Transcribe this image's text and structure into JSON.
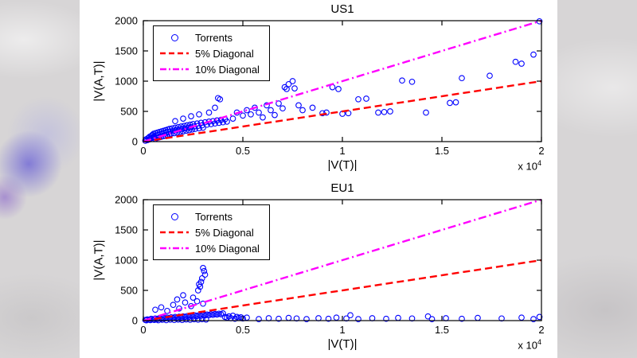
{
  "colors": {
    "marker": "#0000ff",
    "diag5": "#ff0000",
    "diag10": "#ff00ff",
    "axis": "#000000",
    "figure_bg": "#ffffff"
  },
  "legend": {
    "items": [
      {
        "label": "Torrents",
        "marker": "circle"
      },
      {
        "label": "5% Diagonal",
        "marker": "dashed-line"
      },
      {
        "label": "10% Diagonal",
        "marker": "dashdot-line"
      }
    ]
  },
  "chart_data": [
    {
      "type": "scatter",
      "title": "US1",
      "xlabel": "|V(T)|",
      "ylabel": "|V(A,T)|",
      "x_exp_base": "x 10",
      "x_exp_sup": "4",
      "xlim": [
        0,
        20000
      ],
      "ylim": [
        0,
        2000
      ],
      "x_tick_values": [
        0,
        5000,
        10000,
        15000,
        20000
      ],
      "x_tick_labels": [
        "0",
        "0.5",
        "1",
        "1.5",
        "2"
      ],
      "y_tick_values": [
        0,
        500,
        1000,
        1500,
        2000
      ],
      "y_tick_labels": [
        "0",
        "500",
        "1000",
        "1500",
        "2000"
      ],
      "legend_position": "top-left",
      "series": [
        {
          "name": "Torrents",
          "type": "scatter",
          "color_key": "marker",
          "points": [
            [
              100,
              15
            ],
            [
              150,
              40
            ],
            [
              200,
              25
            ],
            [
              250,
              60
            ],
            [
              300,
              35
            ],
            [
              320,
              80
            ],
            [
              350,
              50
            ],
            [
              400,
              95
            ],
            [
              420,
              60
            ],
            [
              450,
              110
            ],
            [
              500,
              70
            ],
            [
              520,
              130
            ],
            [
              550,
              85
            ],
            [
              600,
              45
            ],
            [
              620,
              140
            ],
            [
              650,
              100
            ],
            [
              700,
              60
            ],
            [
              720,
              150
            ],
            [
              750,
              110
            ],
            [
              800,
              70
            ],
            [
              820,
              160
            ],
            [
              850,
              120
            ],
            [
              900,
              80
            ],
            [
              920,
              170
            ],
            [
              950,
              130
            ],
            [
              1000,
              90
            ],
            [
              1020,
              180
            ],
            [
              1050,
              140
            ],
            [
              1100,
              100
            ],
            [
              1120,
              190
            ],
            [
              1150,
              150
            ],
            [
              1200,
              110
            ],
            [
              1220,
              200
            ],
            [
              1250,
              160
            ],
            [
              1300,
              120
            ],
            [
              1320,
              210
            ],
            [
              1350,
              170
            ],
            [
              1400,
              130
            ],
            [
              1450,
              220
            ],
            [
              1500,
              180
            ],
            [
              1550,
              140
            ],
            [
              1600,
              230
            ],
            [
              1650,
              190
            ],
            [
              1700,
              150
            ],
            [
              1750,
              240
            ],
            [
              1800,
              200
            ],
            [
              1850,
              160
            ],
            [
              1900,
              250
            ],
            [
              1950,
              210
            ],
            [
              2000,
              170
            ],
            [
              2050,
              260
            ],
            [
              2100,
              220
            ],
            [
              2150,
              180
            ],
            [
              2200,
              270
            ],
            [
              2250,
              230
            ],
            [
              2300,
              190
            ],
            [
              2350,
              280
            ],
            [
              2400,
              240
            ],
            [
              2450,
              200
            ],
            [
              2500,
              290
            ],
            [
              2550,
              250
            ],
            [
              2600,
              210
            ],
            [
              2700,
              300
            ],
            [
              2750,
              260
            ],
            [
              2800,
              220
            ],
            [
              2900,
              310
            ],
            [
              2950,
              270
            ],
            [
              3000,
              230
            ],
            [
              3100,
              320
            ],
            [
              3200,
              280
            ],
            [
              3300,
              330
            ],
            [
              3400,
              290
            ],
            [
              3500,
              340
            ],
            [
              3600,
              300
            ],
            [
              3700,
              350
            ],
            [
              3800,
              310
            ],
            [
              3900,
              360
            ],
            [
              4000,
              320
            ],
            [
              4100,
              370
            ],
            [
              4200,
              330
            ],
            [
              1600,
              340
            ],
            [
              2000,
              380
            ],
            [
              2400,
              420
            ],
            [
              2800,
              450
            ],
            [
              3300,
              480
            ],
            [
              3600,
              560
            ],
            [
              3750,
              720
            ],
            [
              3850,
              700
            ],
            [
              4500,
              380
            ],
            [
              4700,
              480
            ],
            [
              5000,
              430
            ],
            [
              5200,
              520
            ],
            [
              5400,
              450
            ],
            [
              5600,
              560
            ],
            [
              5800,
              480
            ],
            [
              6000,
              400
            ],
            [
              6200,
              600
            ],
            [
              6400,
              520
            ],
            [
              6600,
              440
            ],
            [
              6800,
              630
            ],
            [
              7000,
              550
            ],
            [
              7100,
              900
            ],
            [
              7200,
              870
            ],
            [
              7300,
              950
            ],
            [
              7500,
              1000
            ],
            [
              7600,
              880
            ],
            [
              7800,
              600
            ],
            [
              8000,
              520
            ],
            [
              8500,
              560
            ],
            [
              9000,
              470
            ],
            [
              9200,
              480
            ],
            [
              9500,
              900
            ],
            [
              9800,
              870
            ],
            [
              10000,
              460
            ],
            [
              10300,
              470
            ],
            [
              10800,
              700
            ],
            [
              11200,
              710
            ],
            [
              11800,
              480
            ],
            [
              12100,
              490
            ],
            [
              12400,
              500
            ],
            [
              13000,
              1010
            ],
            [
              13500,
              990
            ],
            [
              14200,
              480
            ],
            [
              15400,
              640
            ],
            [
              15700,
              650
            ],
            [
              16000,
              1050
            ],
            [
              17400,
              1090
            ],
            [
              18700,
              1320
            ],
            [
              19000,
              1290
            ],
            [
              19600,
              1440
            ],
            [
              19900,
              1990
            ]
          ]
        },
        {
          "name": "5% Diagonal",
          "type": "line",
          "slope": 0.05,
          "color_key": "diag5",
          "style": "dashed"
        },
        {
          "name": "10% Diagonal",
          "type": "line",
          "slope": 0.1,
          "color_key": "diag10",
          "style": "dashdot"
        }
      ]
    },
    {
      "type": "scatter",
      "title": "EU1",
      "xlabel": "|V(T)|",
      "ylabel": "|V(A,T)|",
      "x_exp_base": "x 10",
      "x_exp_sup": "4",
      "xlim": [
        0,
        20000
      ],
      "ylim": [
        0,
        2000
      ],
      "x_tick_values": [
        0,
        5000,
        10000,
        15000,
        20000
      ],
      "x_tick_labels": [
        "0",
        "0.5",
        "1",
        "1.5",
        "2"
      ],
      "y_tick_values": [
        0,
        500,
        1000,
        1500,
        2000
      ],
      "y_tick_labels": [
        "0",
        "500",
        "1000",
        "1500",
        "2000"
      ],
      "legend_position": "top-left",
      "series": [
        {
          "name": "Torrents",
          "type": "scatter",
          "color_key": "marker",
          "points": [
            [
              100,
              10
            ],
            [
              200,
              20
            ],
            [
              300,
              15
            ],
            [
              400,
              30
            ],
            [
              500,
              20
            ],
            [
              600,
              35
            ],
            [
              700,
              25
            ],
            [
              800,
              40
            ],
            [
              900,
              30
            ],
            [
              1000,
              45
            ],
            [
              1100,
              35
            ],
            [
              1200,
              50
            ],
            [
              1300,
              40
            ],
            [
              1400,
              55
            ],
            [
              1500,
              45
            ],
            [
              1600,
              60
            ],
            [
              1700,
              50
            ],
            [
              1800,
              65
            ],
            [
              1900,
              55
            ],
            [
              2000,
              70
            ],
            [
              2100,
              60
            ],
            [
              2200,
              75
            ],
            [
              2300,
              65
            ],
            [
              2400,
              80
            ],
            [
              2500,
              70
            ],
            [
              2600,
              85
            ],
            [
              2700,
              75
            ],
            [
              2800,
              90
            ],
            [
              2900,
              80
            ],
            [
              3000,
              95
            ],
            [
              3100,
              85
            ],
            [
              3200,
              100
            ],
            [
              3300,
              90
            ],
            [
              3400,
              105
            ],
            [
              3500,
              95
            ],
            [
              3600,
              110
            ],
            [
              3700,
              100
            ],
            [
              3800,
              115
            ],
            [
              3900,
              105
            ],
            [
              4000,
              120
            ],
            [
              4100,
              60
            ],
            [
              4200,
              50
            ],
            [
              4300,
              70
            ],
            [
              4400,
              40
            ],
            [
              4500,
              80
            ],
            [
              4600,
              30
            ],
            [
              4700,
              60
            ],
            [
              4800,
              45
            ],
            [
              4900,
              55
            ],
            [
              5000,
              35
            ],
            [
              5200,
              50
            ],
            [
              150,
              5
            ],
            [
              350,
              8
            ],
            [
              550,
              12
            ],
            [
              750,
              6
            ],
            [
              950,
              14
            ],
            [
              1150,
              8
            ],
            [
              1350,
              16
            ],
            [
              1550,
              10
            ],
            [
              1750,
              18
            ],
            [
              1950,
              12
            ],
            [
              2150,
              20
            ],
            [
              2350,
              14
            ],
            [
              2550,
              22
            ],
            [
              2750,
              16
            ],
            [
              2950,
              24
            ],
            [
              3150,
              18
            ],
            [
              600,
              180
            ],
            [
              900,
              220
            ],
            [
              1200,
              160
            ],
            [
              1500,
              260
            ],
            [
              1800,
              200
            ],
            [
              2100,
              300
            ],
            [
              2400,
              240
            ],
            [
              2500,
              380
            ],
            [
              2700,
              320
            ],
            [
              3000,
              280
            ],
            [
              2000,
              420
            ],
            [
              1700,
              350
            ],
            [
              2750,
              500
            ],
            [
              2850,
              560
            ],
            [
              2800,
              600
            ],
            [
              2900,
              640
            ],
            [
              2950,
              700
            ],
            [
              3100,
              760
            ],
            [
              3050,
              820
            ],
            [
              3000,
              870
            ],
            [
              5800,
              25
            ],
            [
              6300,
              40
            ],
            [
              6800,
              30
            ],
            [
              7300,
              45
            ],
            [
              7700,
              35
            ],
            [
              8200,
              25
            ],
            [
              8800,
              40
            ],
            [
              9300,
              30
            ],
            [
              9700,
              50
            ],
            [
              10200,
              35
            ],
            [
              10400,
              90
            ],
            [
              10800,
              25
            ],
            [
              11500,
              40
            ],
            [
              12200,
              30
            ],
            [
              12800,
              45
            ],
            [
              13500,
              35
            ],
            [
              14300,
              70
            ],
            [
              14500,
              25
            ],
            [
              15200,
              40
            ],
            [
              16000,
              30
            ],
            [
              16800,
              45
            ],
            [
              18000,
              35
            ],
            [
              19000,
              50
            ],
            [
              19600,
              25
            ],
            [
              19900,
              60
            ]
          ]
        },
        {
          "name": "5% Diagonal",
          "type": "line",
          "slope": 0.05,
          "color_key": "diag5",
          "style": "dashed"
        },
        {
          "name": "10% Diagonal",
          "type": "line",
          "slope": 0.1,
          "color_key": "diag10",
          "style": "dashdot"
        }
      ]
    }
  ]
}
